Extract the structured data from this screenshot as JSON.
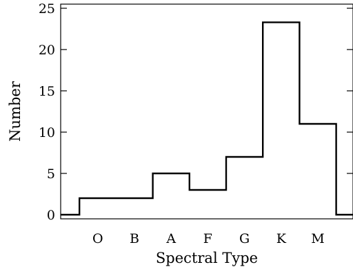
{
  "chart_data": {
    "type": "bar",
    "style": "step-histogram",
    "categories": [
      "O",
      "B",
      "A",
      "F",
      "G",
      "K",
      "M"
    ],
    "values": [
      2,
      2,
      5,
      3,
      7,
      23.3,
      11
    ],
    "edge_bins": {
      "left": 0,
      "right": 0
    },
    "xlabel": "Spectral Type",
    "ylabel": "Number",
    "ylim": [
      -0.5,
      25.5
    ],
    "yticks": [
      0,
      5,
      10,
      15,
      20,
      25
    ],
    "grid": false
  }
}
